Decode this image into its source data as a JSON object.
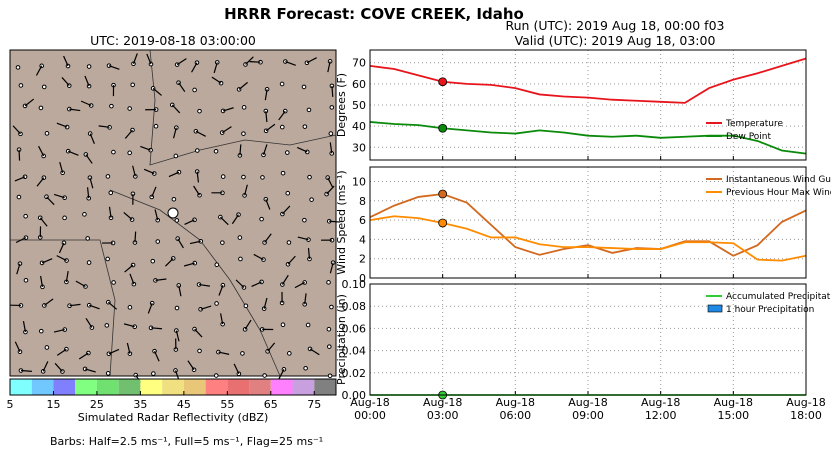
{
  "header": {
    "title": "HRRR Forecast: COVE CREEK, Idaho",
    "run": "Run (UTC): 2019 Aug 18, 00:00 f03",
    "valid": "Valid (UTC): 2019 Aug 18, 03:00"
  },
  "map": {
    "title": "UTC: 2019-08-18 03:00:00",
    "colorbar": {
      "colors": [
        "#80ffff",
        "#70c8ff",
        "#8080ff",
        "#80ff80",
        "#70e070",
        "#70c070",
        "#ffff80",
        "#f0e080",
        "#e8c878",
        "#ff8080",
        "#e87070",
        "#e08080",
        "#ff80ff",
        "#c8a0e0",
        "#808080"
      ],
      "lim": [
        5,
        80
      ],
      "ticks": [
        5,
        15,
        25,
        35,
        45,
        55,
        65,
        75
      ],
      "label": "Simulated Radar Reflectivity (dBZ)"
    },
    "barbs_note": "Barbs: Half=2.5 ms⁻¹, Full=5 ms⁻¹, Flag=25 ms⁻¹"
  },
  "chart_data": [
    {
      "type": "line",
      "ylabel": "Degrees (F)",
      "x": [
        0,
        1,
        2,
        3,
        4,
        5,
        6,
        7,
        8,
        9,
        10,
        11,
        12,
        13,
        14,
        15,
        16,
        17,
        18
      ],
      "xlim": [
        0,
        18
      ],
      "xticks": [
        0,
        3,
        6,
        9,
        12,
        15,
        18
      ],
      "ylim": [
        24,
        76
      ],
      "yticks": [
        30,
        40,
        50,
        60,
        70
      ],
      "grid": true,
      "legend": "lower right",
      "marker_index": 3,
      "series": [
        {
          "name": "Temperature",
          "color": "#e8141c",
          "values": [
            68.5,
            67,
            64,
            61,
            60,
            59.5,
            58,
            55,
            54,
            53.5,
            52.5,
            52,
            51.5,
            51,
            58,
            62,
            65,
            68.5,
            72
          ]
        },
        {
          "name": "Dew Point",
          "color": "#0a8a0a",
          "values": [
            42,
            41,
            40.5,
            39,
            38,
            37,
            36.5,
            38,
            37,
            35.5,
            35,
            35.5,
            34.5,
            35,
            35.5,
            35.5,
            33,
            28.5,
            27
          ]
        }
      ]
    },
    {
      "type": "line",
      "ylabel": "Wind Speed (ms⁻¹)",
      "x": [
        0,
        1,
        2,
        3,
        4,
        5,
        6,
        7,
        8,
        9,
        10,
        11,
        12,
        13,
        14,
        15,
        16,
        17,
        18
      ],
      "xlim": [
        0,
        18
      ],
      "xticks": [
        0,
        3,
        6,
        9,
        12,
        15,
        18
      ],
      "ylim": [
        0,
        11.5
      ],
      "yticks": [
        0,
        2,
        4,
        6,
        8,
        10
      ],
      "grid": true,
      "legend": "upper right",
      "marker_index": 3,
      "series": [
        {
          "name": "Instantaneous Wind Gust",
          "color": "#d2691e",
          "values": [
            6.3,
            7.5,
            8.4,
            8.7,
            7.8,
            5.5,
            3.2,
            2.4,
            3.0,
            3.4,
            2.6,
            3.1,
            3.0,
            3.8,
            3.8,
            2.3,
            3.4,
            5.8,
            7.0
          ]
        },
        {
          "name": "Previous Hour Max Wind",
          "color": "#ff8c00",
          "values": [
            6.0,
            6.4,
            6.2,
            5.7,
            5.1,
            4.2,
            4.2,
            3.5,
            3.2,
            3.2,
            3.1,
            3.0,
            3.0,
            3.7,
            3.7,
            3.6,
            1.9,
            1.8,
            2.3
          ]
        }
      ]
    },
    {
      "type": "bar_line",
      "ylabel": "Precipitation (in)",
      "x": [
        0,
        1,
        2,
        3,
        4,
        5,
        6,
        7,
        8,
        9,
        10,
        11,
        12,
        13,
        14,
        15,
        16,
        17,
        18
      ],
      "xlim": [
        0,
        18
      ],
      "xticks": [
        {
          "value": 0,
          "label": [
            "Aug-18",
            "00:00"
          ]
        },
        {
          "value": 3,
          "label": [
            "Aug-18",
            "03:00"
          ]
        },
        {
          "value": 6,
          "label": [
            "Aug-18",
            "06:00"
          ]
        },
        {
          "value": 9,
          "label": [
            "Aug-18",
            "09:00"
          ]
        },
        {
          "value": 12,
          "label": [
            "Aug-18",
            "12:00"
          ]
        },
        {
          "value": 15,
          "label": [
            "Aug-18",
            "15:00"
          ]
        },
        {
          "value": 18,
          "label": [
            "Aug-18",
            "18:00"
          ]
        }
      ],
      "ylim": [
        0,
        0.1
      ],
      "yticks": [
        {
          "value": 0,
          "label": "0.00"
        },
        {
          "value": 0.02,
          "label": "0.02"
        },
        {
          "value": 0.04,
          "label": "0.04"
        },
        {
          "value": 0.06,
          "label": "0.06"
        },
        {
          "value": 0.08,
          "label": "0.08"
        },
        {
          "value": 0.1,
          "label": "0.10"
        }
      ],
      "grid": true,
      "legend": "upper right",
      "marker_index": 3,
      "series": [
        {
          "name": "Accumulated Precipitation",
          "color": "#32cd32",
          "kind": "line",
          "values": [
            0,
            0,
            0,
            0,
            0,
            0,
            0,
            0,
            0,
            0,
            0,
            0,
            0,
            0,
            0,
            0,
            0,
            0,
            0
          ]
        },
        {
          "name": "1 hour Precipitation",
          "color": "#1e88e5",
          "kind": "bar",
          "values": [
            0,
            0,
            0,
            0,
            0,
            0,
            0,
            0,
            0,
            0,
            0,
            0,
            0,
            0,
            0,
            0,
            0,
            0,
            0
          ]
        }
      ]
    }
  ]
}
